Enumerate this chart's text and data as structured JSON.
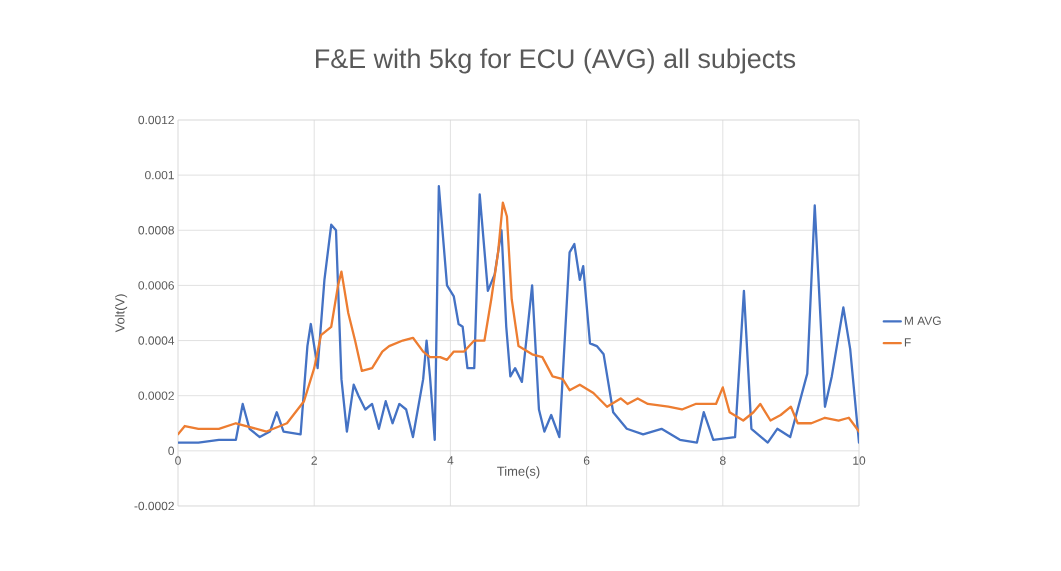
{
  "chart_data": {
    "type": "line",
    "title": "F&E with 5kg for ECU (AVG) all subjects",
    "xlabel": "Time(s)",
    "ylabel": "Volt(V)",
    "xlim": [
      0,
      10
    ],
    "xticks": [
      0,
      2,
      4,
      6,
      8,
      10
    ],
    "ylim": [
      -0.0002,
      0.0012
    ],
    "yticks": [
      -0.0002,
      0,
      0.0002,
      0.0004,
      0.0006,
      0.0008,
      0.001,
      0.0012
    ],
    "grid": true,
    "legend": "right",
    "marker": "none",
    "line_style": "solid",
    "series": [
      {
        "name": "M AVG",
        "color": "#4472c4",
        "x": [
          0,
          0.3,
          0.6,
          0.85,
          0.95,
          1.05,
          1.2,
          1.35,
          1.45,
          1.55,
          1.8,
          1.9,
          1.95,
          2.05,
          2.15,
          2.25,
          2.32,
          2.4,
          2.48,
          2.58,
          2.65,
          2.75,
          2.85,
          2.95,
          3.05,
          3.15,
          3.25,
          3.35,
          3.45,
          3.6,
          3.65,
          3.7,
          3.77,
          3.83,
          3.95,
          4.05,
          4.12,
          4.18,
          4.25,
          4.35,
          4.43,
          4.55,
          4.65,
          4.75,
          4.82,
          4.88,
          4.95,
          5.05,
          5.2,
          5.3,
          5.38,
          5.48,
          5.6,
          5.75,
          5.82,
          5.9,
          5.95,
          6.05,
          6.15,
          6.25,
          6.39,
          6.59,
          6.83,
          7.1,
          7.37,
          7.62,
          7.72,
          7.86,
          8.18,
          8.31,
          8.42,
          8.66,
          8.8,
          8.99,
          9.24,
          9.35,
          9.5,
          9.6,
          9.77,
          9.87,
          10
        ],
        "values": [
          3e-05,
          3e-05,
          4e-05,
          4e-05,
          0.00017,
          8e-05,
          5e-05,
          7e-05,
          0.00014,
          7e-05,
          6e-05,
          0.00038,
          0.00046,
          0.0003,
          0.00062,
          0.00082,
          0.0008,
          0.00026,
          7e-05,
          0.00024,
          0.0002,
          0.00015,
          0.00017,
          8e-05,
          0.00018,
          0.0001,
          0.00017,
          0.00015,
          5e-05,
          0.00026,
          0.0004,
          0.00027,
          4e-05,
          0.00096,
          0.0006,
          0.00056,
          0.00046,
          0.00045,
          0.0003,
          0.0003,
          0.00093,
          0.00058,
          0.00064,
          0.0008,
          0.00045,
          0.00027,
          0.0003,
          0.00025,
          0.0006,
          0.00015,
          7e-05,
          0.00013,
          5e-05,
          0.00072,
          0.00075,
          0.00062,
          0.00067,
          0.00039,
          0.00038,
          0.00035,
          0.00014,
          8e-05,
          6e-05,
          8e-05,
          4e-05,
          3e-05,
          0.00014,
          4e-05,
          5e-05,
          0.00058,
          8e-05,
          3e-05,
          8e-05,
          5e-05,
          0.00028,
          0.00089,
          0.00016,
          0.00027,
          0.00052,
          0.00037,
          3e-05
        ]
      },
      {
        "name": "F",
        "color": "#ed7d31",
        "x": [
          0,
          0.1,
          0.3,
          0.6,
          0.85,
          1.0,
          1.3,
          1.6,
          1.85,
          2.0,
          2.1,
          2.25,
          2.35,
          2.4,
          2.5,
          2.6,
          2.7,
          2.85,
          3.0,
          3.1,
          3.3,
          3.45,
          3.6,
          3.7,
          3.85,
          3.95,
          4.05,
          4.2,
          4.35,
          4.5,
          4.6,
          4.7,
          4.77,
          4.83,
          4.9,
          5.0,
          5.2,
          5.35,
          5.5,
          5.65,
          5.75,
          5.9,
          6.1,
          6.3,
          6.5,
          6.6,
          6.75,
          6.9,
          7.2,
          7.4,
          7.6,
          7.9,
          8.0,
          8.1,
          8.3,
          8.45,
          8.55,
          8.7,
          8.85,
          9.0,
          9.1,
          9.3,
          9.5,
          9.7,
          9.85,
          10
        ],
        "values": [
          6e-05,
          9e-05,
          8e-05,
          8e-05,
          0.0001,
          9e-05,
          7e-05,
          0.0001,
          0.00018,
          0.0003,
          0.00042,
          0.00045,
          0.0006,
          0.00065,
          0.0005,
          0.0004,
          0.00029,
          0.0003,
          0.00036,
          0.00038,
          0.0004,
          0.00041,
          0.00036,
          0.00034,
          0.00034,
          0.00033,
          0.00036,
          0.00036,
          0.0004,
          0.0004,
          0.00055,
          0.00072,
          0.0009,
          0.00085,
          0.00055,
          0.00038,
          0.00035,
          0.00034,
          0.00027,
          0.00026,
          0.00022,
          0.00024,
          0.00021,
          0.00016,
          0.00019,
          0.00017,
          0.00019,
          0.00017,
          0.00016,
          0.00015,
          0.00017,
          0.00017,
          0.00023,
          0.00014,
          0.00011,
          0.00014,
          0.00017,
          0.00011,
          0.00013,
          0.00016,
          0.0001,
          0.0001,
          0.00012,
          0.00011,
          0.00012,
          7e-05
        ]
      }
    ]
  }
}
